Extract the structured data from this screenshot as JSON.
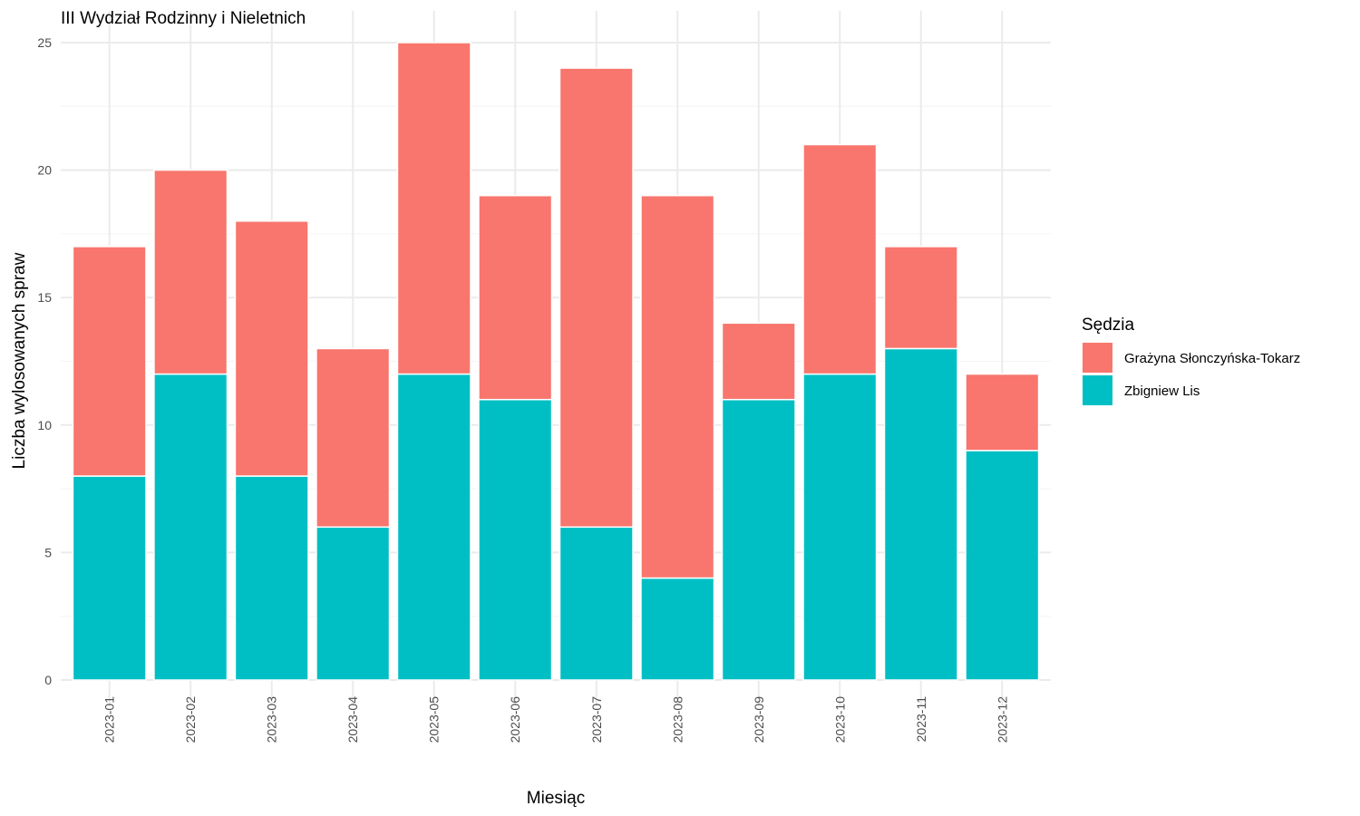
{
  "chart_data": {
    "type": "bar",
    "stacked": true,
    "title": "III Wydział Rodzinny i Nieletnich",
    "xlabel": "Miesiąc",
    "ylabel": "Liczba wylosowanych spraw",
    "ylim": [
      0,
      26.25
    ],
    "y_ticks": [
      0,
      5,
      10,
      15,
      20,
      25
    ],
    "grid": true,
    "categories": [
      "2023-01",
      "2023-02",
      "2023-03",
      "2023-04",
      "2023-05",
      "2023-06",
      "2023-07",
      "2023-08",
      "2023-09",
      "2023-10",
      "2023-11",
      "2023-12"
    ],
    "series": [
      {
        "name": "Zbigniew Lis",
        "color": "#00BFC4",
        "values": [
          8,
          12,
          8,
          6,
          12,
          11,
          6,
          4,
          11,
          12,
          13,
          9
        ]
      },
      {
        "name": "Grażyna Słonczyńska-Tokarz",
        "color": "#F8766D",
        "values": [
          9,
          8,
          10,
          7,
          13,
          8,
          18,
          15,
          3,
          9,
          4,
          3
        ]
      }
    ],
    "legend": {
      "title": "Sędzia",
      "position": "right",
      "entries": [
        "Grażyna Słonczyńska-Tokarz",
        "Zbigniew Lis"
      ]
    }
  }
}
